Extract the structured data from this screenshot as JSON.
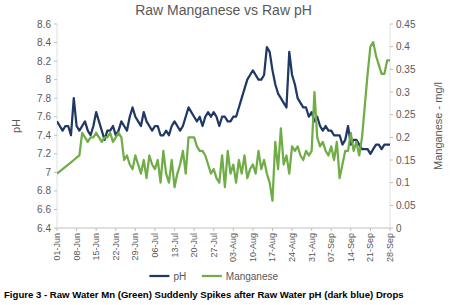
{
  "chart_data": {
    "type": "line",
    "title": "Raw Manganese vs Raw pH",
    "caption": "Figure 3 - Raw Water Mn (Green) Suddenly Spikes after Raw Water pH (dark blue) Drops",
    "ylabel": "pH",
    "y2label": "Manganese - mg/l",
    "categories": [
      "01-Jun",
      null,
      null,
      null,
      null,
      null,
      null,
      "08-Jun",
      null,
      null,
      null,
      null,
      null,
      null,
      "15-Jun",
      null,
      null,
      null,
      null,
      null,
      null,
      "22-Jun",
      null,
      null,
      null,
      null,
      null,
      null,
      "29-Jun",
      null,
      null,
      null,
      null,
      null,
      null,
      "06-Jul",
      null,
      null,
      null,
      null,
      null,
      null,
      "13-Jul",
      null,
      null,
      null,
      null,
      null,
      null,
      "20-Jul",
      null,
      null,
      null,
      null,
      null,
      null,
      "27-Jul",
      null,
      null,
      null,
      null,
      null,
      null,
      "03-Aug",
      null,
      null,
      null,
      null,
      null,
      null,
      "10-Aug",
      null,
      null,
      null,
      null,
      null,
      null,
      "17-Aug",
      null,
      null,
      null,
      null,
      null,
      null,
      "24-Aug",
      null,
      null,
      null,
      null,
      null,
      null,
      "31-Aug",
      null,
      null,
      null,
      null,
      null,
      null,
      "07-Sep",
      null,
      null,
      null,
      null,
      null,
      null,
      "14-Sep",
      null,
      null,
      null,
      null,
      null,
      null,
      "21-Sep",
      null,
      null,
      null,
      null,
      null,
      null,
      "28-Sep"
    ],
    "series": [
      {
        "name": "pH",
        "color": "#1f3864",
        "values": [
          7.55,
          7.5,
          7.45,
          7.5,
          7.5,
          7.4,
          7.8,
          7.5,
          7.45,
          7.5,
          7.55,
          7.45,
          7.4,
          7.5,
          7.65,
          7.55,
          7.45,
          7.35,
          7.45,
          7.45,
          7.5,
          7.4,
          7.45,
          7.55,
          7.5,
          7.45,
          7.6,
          7.7,
          7.6,
          7.55,
          7.5,
          7.65,
          7.55,
          7.5,
          7.45,
          7.5,
          7.5,
          7.4,
          7.4,
          7.45,
          7.4,
          7.5,
          7.55,
          7.5,
          7.45,
          7.5,
          7.6,
          7.7,
          7.65,
          7.6,
          7.55,
          7.6,
          7.5,
          7.6,
          7.65,
          7.6,
          7.65,
          7.6,
          7.5,
          7.6,
          7.6,
          7.55,
          7.55,
          7.6,
          7.6,
          7.7,
          7.8,
          7.9,
          8.0,
          8.05,
          8.1,
          8.05,
          8.0,
          8.0,
          8.05,
          8.35,
          8.3,
          8.1,
          7.95,
          7.85,
          7.8,
          7.75,
          7.7,
          8.3,
          8.05,
          7.95,
          7.8,
          7.75,
          7.7,
          7.7,
          7.6,
          7.65,
          7.55,
          7.6,
          7.5,
          7.45,
          7.5,
          7.45,
          7.45,
          7.4,
          7.4,
          7.4,
          7.3,
          7.35,
          7.5,
          7.3,
          7.35,
          7.35,
          7.3,
          7.25,
          7.25,
          7.25,
          7.2,
          7.25,
          7.3,
          7.3,
          7.25,
          7.3,
          7.3,
          7.3
        ]
      },
      {
        "name": "Manganese",
        "color": "#70ad47",
        "axis": "y2",
        "values": [
          0.12,
          0.125,
          0.13,
          0.135,
          0.14,
          0.145,
          0.15,
          0.155,
          0.16,
          0.21,
          0.2,
          0.19,
          0.2,
          0.2,
          0.21,
          0.2,
          0.19,
          0.2,
          0.2,
          0.21,
          0.19,
          0.2,
          0.21,
          0.2,
          0.15,
          0.16,
          0.14,
          0.13,
          0.16,
          0.14,
          0.12,
          0.15,
          0.11,
          0.16,
          0.14,
          0.13,
          0.15,
          0.1,
          0.17,
          0.12,
          0.1,
          0.15,
          0.09,
          0.12,
          0.14,
          0.17,
          0.12,
          0.2,
          0.2,
          0.2,
          0.18,
          0.17,
          0.17,
          0.16,
          0.14,
          0.12,
          0.13,
          0.11,
          0.1,
          0.16,
          0.09,
          0.17,
          0.12,
          0.14,
          0.1,
          0.15,
          0.12,
          0.16,
          0.11,
          0.13,
          0.14,
          0.12,
          0.17,
          0.13,
          0.15,
          0.12,
          0.1,
          0.06,
          0.19,
          0.13,
          0.22,
          0.14,
          0.16,
          0.12,
          0.18,
          0.17,
          0.18,
          0.16,
          0.15,
          0.17,
          0.16,
          0.17,
          0.3,
          0.2,
          0.18,
          0.19,
          0.17,
          0.16,
          0.18,
          0.15,
          0.19,
          0.11,
          0.14,
          0.17,
          0.17,
          0.21,
          0.17,
          0.19,
          0.16,
          0.2,
          0.27,
          0.34,
          0.4,
          0.41,
          0.38,
          0.36,
          0.34,
          0.34,
          0.37,
          0.37
        ]
      }
    ],
    "ylim": [
      6.4,
      8.6
    ],
    "yticks": [
      6.4,
      6.6,
      6.8,
      7,
      7.2,
      7.4,
      7.6,
      7.8,
      8,
      8.2,
      8.4,
      8.6
    ],
    "y2lim": [
      0,
      0.45
    ],
    "y2ticks": [
      0,
      0.05,
      0.1,
      0.15,
      0.2,
      0.25,
      0.3,
      0.35,
      0.4,
      0.45
    ],
    "grid": false,
    "legend": "bottom"
  }
}
